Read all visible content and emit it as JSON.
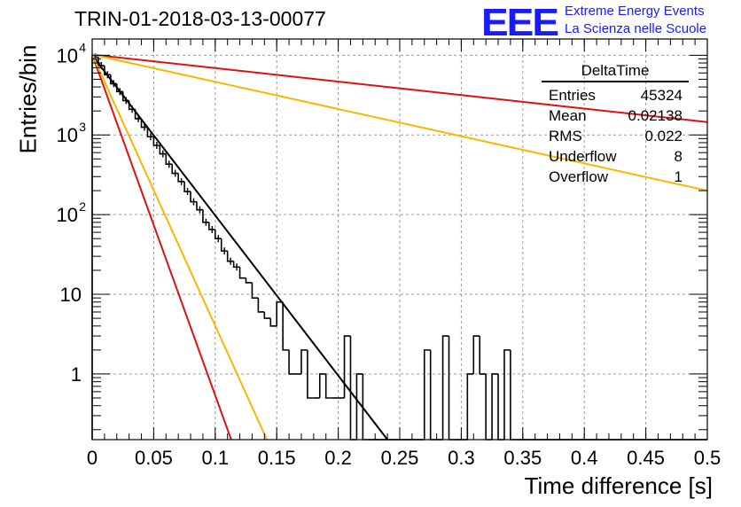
{
  "header": {
    "title": "TRIN-01-2018-03-13-00077",
    "logo_text": "EEE",
    "logo_line1": "Extreme Energy Events",
    "logo_line2": "La Scienza nelle Scuole"
  },
  "stats": {
    "name": "DeltaTime",
    "rows": [
      {
        "label": "Entries",
        "value": "45324"
      },
      {
        "label": "Mean",
        "value": "0.02138"
      },
      {
        "label": "RMS",
        "value": "0.022"
      },
      {
        "label": "Underflow",
        "value": "8"
      },
      {
        "label": "Overflow",
        "value": "1"
      }
    ]
  },
  "chart_data": {
    "type": "line",
    "xlabel": "Time difference [s]",
    "ylabel": "Entries/bin",
    "xlim": [
      0,
      0.5
    ],
    "ylim": [
      0.15,
      16000
    ],
    "yscale": "log",
    "grid": true,
    "x_ticks": [
      "0",
      "0.05",
      "0.1",
      "0.15",
      "0.2",
      "0.25",
      "0.3",
      "0.35",
      "0.4",
      "0.45",
      "0.5"
    ],
    "y_ticks": [
      {
        "value": 1,
        "label": "1"
      },
      {
        "value": 10,
        "label": "10"
      },
      {
        "value": 100,
        "label": "10",
        "exp": "2"
      },
      {
        "value": 1000,
        "label": "10",
        "exp": "3"
      },
      {
        "value": 10000,
        "label": "10",
        "exp": "4"
      }
    ],
    "histogram": {
      "bin_width": 0.005,
      "values": [
        9500,
        7400,
        5700,
        4400,
        3500,
        2700,
        2100,
        1600,
        1250,
        950,
        740,
        580,
        430,
        330,
        260,
        195,
        145,
        115,
        80,
        65,
        50,
        35,
        26,
        22,
        16,
        14,
        9,
        6,
        5,
        4,
        8,
        2,
        1,
        1,
        2,
        0.5,
        0.5,
        1,
        0.5,
        0.5,
        0.5,
        3,
        0,
        1,
        0,
        0,
        0,
        0,
        0,
        0,
        0,
        0,
        0,
        0,
        2,
        0,
        0,
        3,
        0,
        0,
        0,
        1,
        3,
        1,
        0,
        1,
        0,
        2,
        0,
        0,
        0,
        0,
        0,
        0,
        0,
        0,
        0,
        0,
        0,
        0,
        0,
        0,
        0,
        0,
        0,
        0,
        0,
        0,
        0,
        0,
        0,
        0,
        0,
        0,
        0,
        0,
        0,
        0,
        0,
        0
      ],
      "color": "#000000"
    },
    "series": [
      {
        "x": [
          0,
          0.24
        ],
        "y": [
          10000,
          0.15
        ],
        "color": "#000000"
      },
      {
        "x": [
          0,
          0.5
        ],
        "y": [
          10200,
          1450
        ],
        "color": "#dd1111"
      },
      {
        "x": [
          0,
          0.5
        ],
        "y": [
          10200,
          200
        ],
        "color": "#f5b800"
      },
      {
        "x": [
          0,
          0.113
        ],
        "y": [
          10200,
          0.15
        ],
        "color": "#dd1111"
      },
      {
        "x": [
          0,
          0.142
        ],
        "y": [
          10200,
          0.15
        ],
        "color": "#f5b800"
      }
    ]
  }
}
